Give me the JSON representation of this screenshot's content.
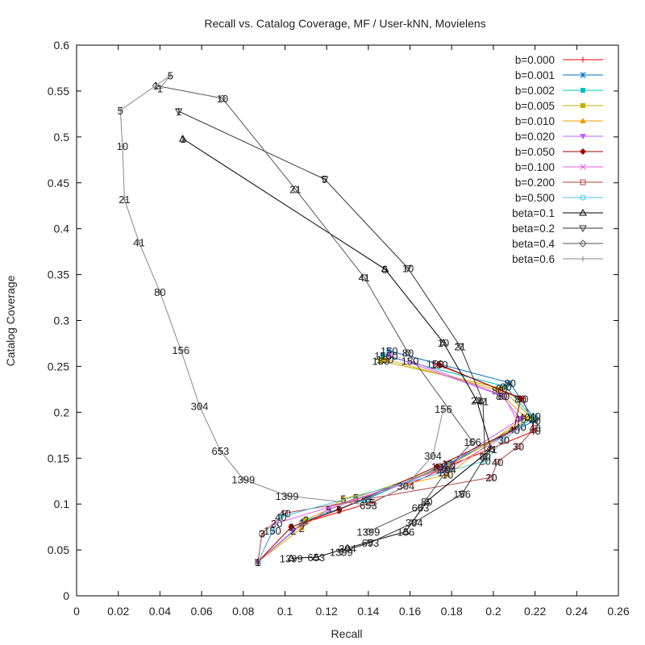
{
  "chart_data": {
    "type": "line",
    "title": "Recall vs. Catalog Coverage, MF / User-kNN, Movielens",
    "xlabel": "Recall",
    "ylabel": "Catalog Coverage",
    "xlim": [
      0,
      0.26
    ],
    "ylim": [
      0,
      0.6
    ],
    "xticks": [
      "0",
      "0.02",
      "0.04",
      "0.06",
      "0.08",
      "0.1",
      "0.12",
      "0.14",
      "0.16",
      "0.18",
      "0.2",
      "0.22",
      "0.24",
      "0.26"
    ],
    "yticks": [
      "0",
      "0.05",
      "0.1",
      "0.15",
      "0.2",
      "0.25",
      "0.3",
      "0.35",
      "0.4",
      "0.45",
      "0.5",
      "0.55",
      "0.6"
    ],
    "legend_position": "top-right",
    "series": [
      {
        "name": "b=0.000",
        "color": "#ff0000",
        "marker": "plus",
        "points": [
          {
            "x": 0.087,
            "y": 0.037,
            "label": "1"
          },
          {
            "x": 0.108,
            "y": 0.079,
            "label": "2"
          },
          {
            "x": 0.142,
            "y": 0.102,
            "label": "5"
          },
          {
            "x": 0.177,
            "y": 0.14,
            "label": "10"
          },
          {
            "x": 0.22,
            "y": 0.18,
            "label": "40"
          },
          {
            "x": 0.214,
            "y": 0.215,
            "label": "80"
          },
          {
            "x": 0.172,
            "y": 0.253,
            "label": "150"
          }
        ]
      },
      {
        "name": "b=0.001",
        "color": "#0070c0",
        "marker": "star",
        "points": [
          {
            "x": 0.087,
            "y": 0.037,
            "label": "1"
          },
          {
            "x": 0.109,
            "y": 0.081,
            "label": "2"
          },
          {
            "x": 0.14,
            "y": 0.106,
            "label": "5"
          },
          {
            "x": 0.178,
            "y": 0.144,
            "label": "10"
          },
          {
            "x": 0.22,
            "y": 0.191,
            "label": "40"
          },
          {
            "x": 0.208,
            "y": 0.232,
            "label": "80"
          },
          {
            "x": 0.15,
            "y": 0.267,
            "label": "150"
          }
        ]
      },
      {
        "name": "b=0.002",
        "color": "#00c0c0",
        "marker": "square",
        "points": [
          {
            "x": 0.087,
            "y": 0.037,
            "label": "1"
          },
          {
            "x": 0.11,
            "y": 0.082,
            "label": "2"
          },
          {
            "x": 0.138,
            "y": 0.105,
            "label": "5"
          },
          {
            "x": 0.179,
            "y": 0.143,
            "label": "10"
          },
          {
            "x": 0.219,
            "y": 0.193,
            "label": "40"
          },
          {
            "x": 0.206,
            "y": 0.228,
            "label": "80"
          },
          {
            "x": 0.147,
            "y": 0.262,
            "label": "150"
          }
        ]
      },
      {
        "name": "b=0.005",
        "color": "#c0b000",
        "marker": "square",
        "points": [
          {
            "x": 0.087,
            "y": 0.037,
            "label": "1"
          },
          {
            "x": 0.11,
            "y": 0.083,
            "label": "2"
          },
          {
            "x": 0.134,
            "y": 0.107,
            "label": "5"
          },
          {
            "x": 0.179,
            "y": 0.142,
            "label": "10"
          },
          {
            "x": 0.218,
            "y": 0.194,
            "label": "40"
          },
          {
            "x": 0.204,
            "y": 0.226,
            "label": "80"
          },
          {
            "x": 0.146,
            "y": 0.256,
            "label": "150"
          }
        ]
      },
      {
        "name": "b=0.010",
        "color": "#f0a000",
        "marker": "triangle",
        "points": [
          {
            "x": 0.087,
            "y": 0.037,
            "label": "1"
          },
          {
            "x": 0.108,
            "y": 0.074,
            "label": "2"
          },
          {
            "x": 0.128,
            "y": 0.106,
            "label": "5"
          },
          {
            "x": 0.178,
            "y": 0.132,
            "label": "10"
          },
          {
            "x": 0.215,
            "y": 0.195,
            "label": "40"
          },
          {
            "x": 0.202,
            "y": 0.224,
            "label": "80"
          },
          {
            "x": 0.148,
            "y": 0.258,
            "label": "150"
          }
        ]
      },
      {
        "name": "b=0.020",
        "color": "#c060ff",
        "marker": "triangle-down",
        "points": [
          {
            "x": 0.087,
            "y": 0.037,
            "label": "1"
          },
          {
            "x": 0.104,
            "y": 0.071,
            "label": "2"
          },
          {
            "x": 0.121,
            "y": 0.094,
            "label": "5"
          },
          {
            "x": 0.175,
            "y": 0.138,
            "label": "10"
          },
          {
            "x": 0.213,
            "y": 0.193,
            "label": "40"
          },
          {
            "x": 0.204,
            "y": 0.218,
            "label": "80"
          },
          {
            "x": 0.15,
            "y": 0.262,
            "label": "150"
          }
        ]
      },
      {
        "name": "b=0.050",
        "color": "#a00000",
        "marker": "diamond",
        "points": [
          {
            "x": 0.087,
            "y": 0.037,
            "label": "1"
          },
          {
            "x": 0.103,
            "y": 0.075,
            "label": "2"
          },
          {
            "x": 0.126,
            "y": 0.094,
            "label": "5"
          },
          {
            "x": 0.173,
            "y": 0.141,
            "label": "10"
          },
          {
            "x": 0.21,
            "y": 0.181,
            "label": "40"
          },
          {
            "x": 0.213,
            "y": 0.215,
            "label": "80"
          },
          {
            "x": 0.174,
            "y": 0.252,
            "label": "150"
          }
        ]
      },
      {
        "name": "b=0.100",
        "color": "#e060e0",
        "marker": "x",
        "points": [
          {
            "x": 0.087,
            "y": 0.037,
            "label": "1"
          },
          {
            "x": 0.096,
            "y": 0.079,
            "label": "20"
          },
          {
            "x": 0.176,
            "y": 0.135,
            "label": "10"
          },
          {
            "x": 0.213,
            "y": 0.184,
            "label": "40"
          },
          {
            "x": 0.205,
            "y": 0.218,
            "label": "80"
          },
          {
            "x": 0.16,
            "y": 0.256,
            "label": "150"
          }
        ]
      },
      {
        "name": "b=0.200",
        "color": "#b04040",
        "marker": "square-open",
        "points": [
          {
            "x": 0.087,
            "y": 0.037,
            "label": "1"
          },
          {
            "x": 0.089,
            "y": 0.068,
            "label": "3"
          },
          {
            "x": 0.1,
            "y": 0.09,
            "label": "40"
          },
          {
            "x": 0.199,
            "y": 0.129,
            "label": "20"
          },
          {
            "x": 0.202,
            "y": 0.146,
            "label": "40"
          },
          {
            "x": 0.212,
            "y": 0.163,
            "label": "30"
          },
          {
            "x": 0.22,
            "y": 0.183,
            "label": "40"
          }
        ]
      },
      {
        "name": "b=0.500",
        "color": "#40c8e8",
        "marker": "circle-open",
        "points": [
          {
            "x": 0.087,
            "y": 0.037,
            "label": "1"
          },
          {
            "x": 0.094,
            "y": 0.071,
            "label": "150"
          },
          {
            "x": 0.098,
            "y": 0.086,
            "label": "40"
          },
          {
            "x": 0.196,
            "y": 0.147,
            "label": "20"
          },
          {
            "x": 0.205,
            "y": 0.17,
            "label": "30"
          },
          {
            "x": 0.22,
            "y": 0.196,
            "label": "40"
          }
        ]
      },
      {
        "name": "beta=0.1",
        "color": "#000000",
        "marker": "triangle-open",
        "points": [
          {
            "x": 0.051,
            "y": 0.498,
            "label": "1"
          },
          {
            "x": 0.148,
            "y": 0.356,
            "label": "5"
          },
          {
            "x": 0.176,
            "y": 0.276,
            "label": "10"
          },
          {
            "x": 0.192,
            "y": 0.213,
            "label": "21"
          },
          {
            "x": 0.199,
            "y": 0.16,
            "label": "41"
          },
          {
            "x": 0.168,
            "y": 0.103,
            "label": "80"
          },
          {
            "x": 0.158,
            "y": 0.07,
            "label": "156"
          },
          {
            "x": 0.13,
            "y": 0.052,
            "label": "304"
          },
          {
            "x": 0.115,
            "y": 0.042,
            "label": "653"
          },
          {
            "x": 0.103,
            "y": 0.041,
            "label": "1399"
          }
        ]
      },
      {
        "name": "beta=0.2",
        "color": "#333333",
        "marker": "triangle-down-open",
        "points": [
          {
            "x": 0.049,
            "y": 0.528,
            "label": "1"
          },
          {
            "x": 0.119,
            "y": 0.454,
            "label": "5"
          },
          {
            "x": 0.159,
            "y": 0.357,
            "label": "10"
          },
          {
            "x": 0.184,
            "y": 0.272,
            "label": "21"
          },
          {
            "x": 0.195,
            "y": 0.212,
            "label": "41"
          },
          {
            "x": 0.196,
            "y": 0.152,
            "label": "80"
          },
          {
            "x": 0.185,
            "y": 0.111,
            "label": "156"
          },
          {
            "x": 0.162,
            "y": 0.08,
            "label": "304"
          },
          {
            "x": 0.141,
            "y": 0.058,
            "label": "653"
          },
          {
            "x": 0.127,
            "y": 0.048,
            "label": "1399"
          }
        ]
      },
      {
        "name": "beta=0.4",
        "color": "#555555",
        "marker": "diamond-open",
        "points": [
          {
            "x": 0.038,
            "y": 0.556,
            "label": "1"
          },
          {
            "x": 0.07,
            "y": 0.542,
            "label": "10"
          },
          {
            "x": 0.105,
            "y": 0.443,
            "label": "21"
          },
          {
            "x": 0.138,
            "y": 0.347,
            "label": "41"
          },
          {
            "x": 0.159,
            "y": 0.265,
            "label": "80"
          },
          {
            "x": 0.19,
            "y": 0.168,
            "label": "156"
          },
          {
            "x": 0.178,
            "y": 0.138,
            "label": "304"
          },
          {
            "x": 0.165,
            "y": 0.096,
            "label": "653"
          },
          {
            "x": 0.14,
            "y": 0.07,
            "label": "1399"
          }
        ]
      },
      {
        "name": "beta=0.6",
        "color": "#888888",
        "marker": "plus",
        "points": [
          {
            "x": 0.04,
            "y": 0.553,
            "label": "1"
          },
          {
            "x": 0.045,
            "y": 0.567,
            "label": "5"
          },
          {
            "x": 0.021,
            "y": 0.529,
            "label": "5"
          },
          {
            "x": 0.022,
            "y": 0.49,
            "label": "10"
          },
          {
            "x": 0.023,
            "y": 0.432,
            "label": "21"
          },
          {
            "x": 0.03,
            "y": 0.385,
            "label": "41"
          },
          {
            "x": 0.04,
            "y": 0.331,
            "label": "80"
          },
          {
            "x": 0.05,
            "y": 0.268,
            "label": "156"
          },
          {
            "x": 0.059,
            "y": 0.207,
            "label": "304"
          },
          {
            "x": 0.069,
            "y": 0.158,
            "label": "653"
          },
          {
            "x": 0.08,
            "y": 0.127,
            "label": "1399"
          },
          {
            "x": 0.101,
            "y": 0.109,
            "label": "1399"
          },
          {
            "x": 0.14,
            "y": 0.099,
            "label": "653"
          },
          {
            "x": 0.158,
            "y": 0.12,
            "label": "304"
          },
          {
            "x": 0.171,
            "y": 0.153,
            "label": "304"
          },
          {
            "x": 0.176,
            "y": 0.204,
            "label": "156"
          }
        ]
      }
    ]
  }
}
